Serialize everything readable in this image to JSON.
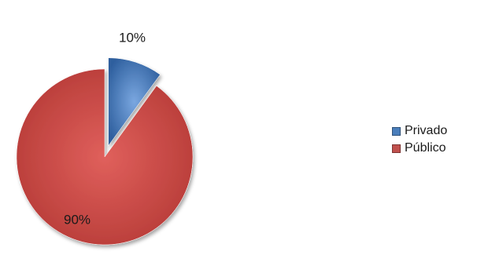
{
  "chart_data": {
    "type": "pie",
    "labels": [
      "Privado",
      "Público"
    ],
    "values": [
      10,
      90
    ],
    "data_labels": [
      "10%",
      "90%"
    ],
    "colors": [
      "#4a7ebb",
      "#c0504d"
    ],
    "exploded": true,
    "legend_position": "right"
  }
}
